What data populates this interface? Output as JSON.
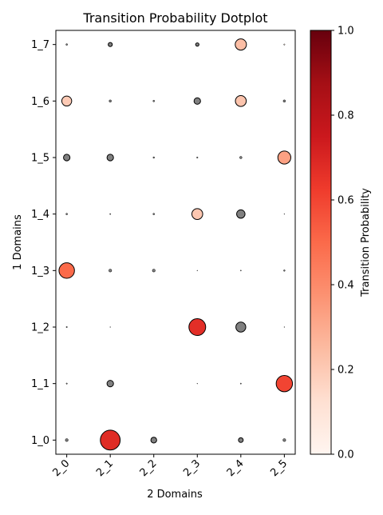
{
  "chart_data": {
    "type": "scatter",
    "title": "Transition Probability Dotplot",
    "xlabel": "2 Domains",
    "ylabel": "1 Domains",
    "x_categories": [
      "2_0",
      "2_1",
      "2_2",
      "2_3",
      "2_4",
      "2_5"
    ],
    "y_categories": [
      "1_0",
      "1_1",
      "1_2",
      "1_3",
      "1_4",
      "1_5",
      "1_6",
      "1_7"
    ],
    "points": [
      {
        "x": "2_0",
        "y": "1_7",
        "count": 1,
        "probability": 0.0
      },
      {
        "x": "2_1",
        "y": "1_7",
        "count": 6,
        "probability": 0.0
      },
      {
        "x": "2_3",
        "y": "1_7",
        "count": 4,
        "probability": 0.0
      },
      {
        "x": "2_4",
        "y": "1_7",
        "count": 45,
        "probability": 0.24
      },
      {
        "x": "2_5",
        "y": "1_7",
        "count": 0.5,
        "probability": 0.05
      },
      {
        "x": "2_0",
        "y": "1_6",
        "count": 35,
        "probability": 0.2
      },
      {
        "x": "2_1",
        "y": "1_6",
        "count": 2,
        "probability": 0.0
      },
      {
        "x": "2_2",
        "y": "1_6",
        "count": 1,
        "probability": 0.0
      },
      {
        "x": "2_3",
        "y": "1_6",
        "count": 15,
        "probability": 0.0
      },
      {
        "x": "2_4",
        "y": "1_6",
        "count": 42,
        "probability": 0.22
      },
      {
        "x": "2_5",
        "y": "1_6",
        "count": 2,
        "probability": 0.0
      },
      {
        "x": "2_0",
        "y": "1_5",
        "count": 15,
        "probability": 0.0
      },
      {
        "x": "2_1",
        "y": "1_5",
        "count": 15,
        "probability": 0.0
      },
      {
        "x": "2_2",
        "y": "1_5",
        "count": 0.8,
        "probability": 0.0
      },
      {
        "x": "2_3",
        "y": "1_5",
        "count": 0.6,
        "probability": 0.0
      },
      {
        "x": "2_4",
        "y": "1_5",
        "count": 2,
        "probability": 0.0
      },
      {
        "x": "2_5",
        "y": "1_5",
        "count": 60,
        "probability": 0.33
      },
      {
        "x": "2_0",
        "y": "1_4",
        "count": 1,
        "probability": 0.0
      },
      {
        "x": "2_1",
        "y": "1_4",
        "count": 0.4,
        "probability": 0.0
      },
      {
        "x": "2_2",
        "y": "1_4",
        "count": 1,
        "probability": 0.0
      },
      {
        "x": "2_3",
        "y": "1_4",
        "count": 42,
        "probability": 0.21
      },
      {
        "x": "2_4",
        "y": "1_4",
        "count": 25,
        "probability": 0.0
      },
      {
        "x": "2_5",
        "y": "1_4",
        "count": 0.1,
        "probability": 0.0
      },
      {
        "x": "2_0",
        "y": "1_3",
        "count": 85,
        "probability": 0.5
      },
      {
        "x": "2_1",
        "y": "1_3",
        "count": 3,
        "probability": 0.0
      },
      {
        "x": "2_2",
        "y": "1_3",
        "count": 3,
        "probability": 0.0
      },
      {
        "x": "2_3",
        "y": "1_3",
        "count": 0.1,
        "probability": 0.0
      },
      {
        "x": "2_4",
        "y": "1_3",
        "count": 0.3,
        "probability": 0.0
      },
      {
        "x": "2_5",
        "y": "1_3",
        "count": 0.8,
        "probability": 0.0
      },
      {
        "x": "2_0",
        "y": "1_2",
        "count": 0.5,
        "probability": 0.0
      },
      {
        "x": "2_1",
        "y": "1_2",
        "count": 0.1,
        "probability": 0.0
      },
      {
        "x": "2_3",
        "y": "1_2",
        "count": 100,
        "probability": 0.67
      },
      {
        "x": "2_4",
        "y": "1_2",
        "count": 35,
        "probability": 0.0
      },
      {
        "x": "2_5",
        "y": "1_2",
        "count": 0.1,
        "probability": 0.0
      },
      {
        "x": "2_0",
        "y": "1_1",
        "count": 0.5,
        "probability": 0.0
      },
      {
        "x": "2_1",
        "y": "1_1",
        "count": 15,
        "probability": 0.0
      },
      {
        "x": "2_3",
        "y": "1_1",
        "count": 0.1,
        "probability": 0.0
      },
      {
        "x": "2_4",
        "y": "1_1",
        "count": 0.4,
        "probability": 0.0
      },
      {
        "x": "2_5",
        "y": "1_1",
        "count": 95,
        "probability": 0.6
      },
      {
        "x": "2_0",
        "y": "1_0",
        "count": 3,
        "probability": 0.0
      },
      {
        "x": "2_1",
        "y": "1_0",
        "count": 140,
        "probability": 0.68
      },
      {
        "x": "2_2",
        "y": "1_0",
        "count": 12,
        "probability": 0.0
      },
      {
        "x": "2_4",
        "y": "1_0",
        "count": 8,
        "probability": 0.0
      },
      {
        "x": "2_5",
        "y": "1_0",
        "count": 3,
        "probability": 0.0
      }
    ],
    "colorbar": {
      "label": "Transition Probability",
      "range": [
        0.0,
        1.0
      ],
      "ticks": [
        "0.0",
        "0.2",
        "0.4",
        "0.6",
        "0.8",
        "1.0"
      ],
      "colormap": "Reds"
    },
    "zero_color": "#808080",
    "edge_color": "#000000",
    "grid": false,
    "legend": "none"
  }
}
